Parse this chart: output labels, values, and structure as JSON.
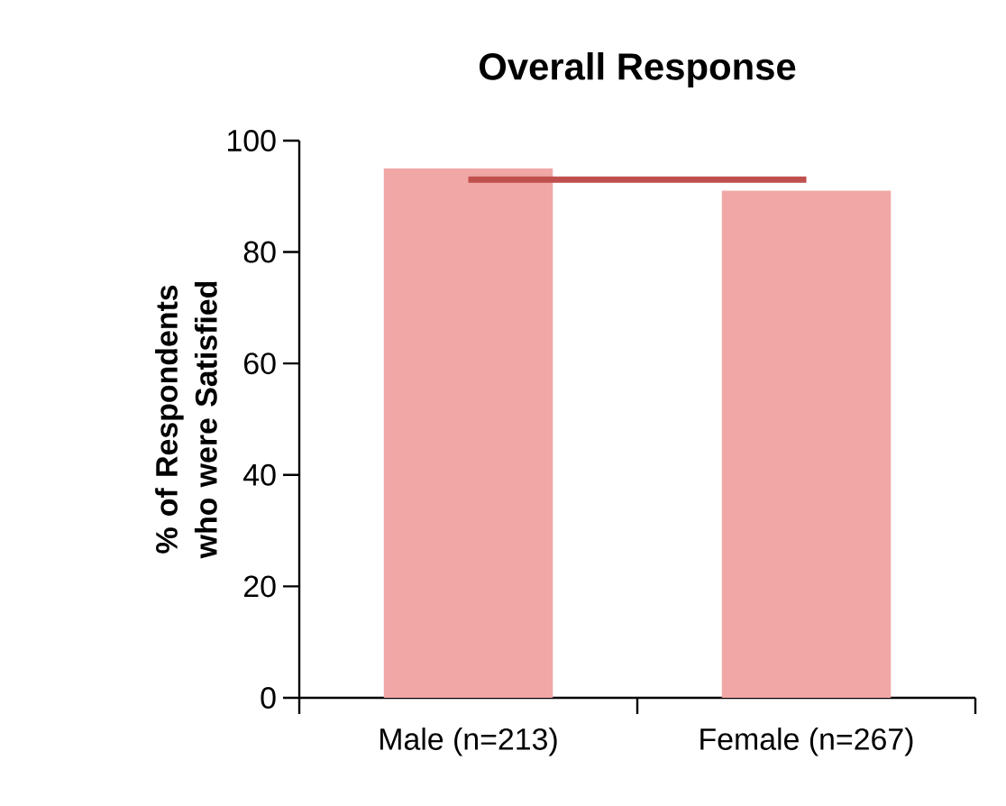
{
  "chart_data": {
    "type": "bar",
    "title": "Overall Response",
    "ylabel": "% of Respondents who were Satisfied",
    "categories": [
      "Male (n=213)",
      "Female (n=267)"
    ],
    "ylim": [
      0,
      100
    ],
    "yticks": [
      0,
      20,
      40,
      60,
      80,
      100
    ],
    "series": [
      {
        "color": "#f2a7a7",
        "values": [
          95,
          91
        ]
      },
      {
        "type": "line",
        "color": "#c0504d",
        "values": [
          93,
          93
        ]
      }
    ]
  }
}
